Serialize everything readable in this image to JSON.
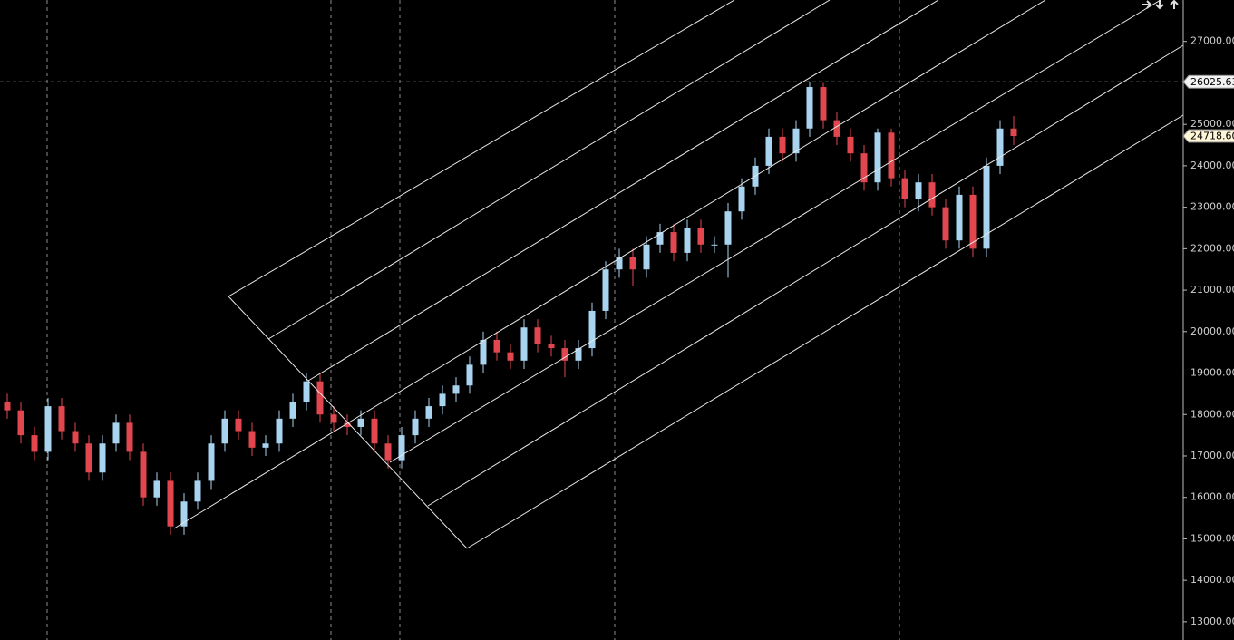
{
  "chart_data": {
    "type": "candlestick",
    "series": {
      "open": [
        18300,
        18100,
        17500,
        17100,
        18200,
        17600,
        17300,
        16600,
        17300,
        17800,
        17100,
        16000,
        16400,
        15300,
        15900,
        16400,
        17300,
        17900,
        17600,
        17200,
        17300,
        17900,
        18300,
        18800,
        18000,
        17800,
        17700,
        17900,
        17300,
        16900,
        17500,
        17900,
        18200,
        18500,
        18700,
        19200,
        19800,
        19500,
        19300,
        20100,
        19700,
        19600,
        19300,
        19600,
        20500,
        21500,
        21800,
        21500,
        22100,
        22400,
        21900,
        22500,
        22100,
        22100,
        22900,
        23500,
        24000,
        24700,
        24300,
        24900,
        25900,
        25100,
        24700,
        24300,
        23600,
        24800,
        23700,
        23200,
        23600,
        23000,
        22200,
        23300,
        22000,
        24000,
        24900
      ],
      "high": [
        18500,
        18300,
        17700,
        18400,
        18400,
        17800,
        17500,
        17500,
        18000,
        18000,
        17300,
        16600,
        16600,
        16100,
        16600,
        17500,
        18100,
        18100,
        17800,
        17500,
        18100,
        18500,
        19000,
        19000,
        18200,
        18000,
        18100,
        18100,
        17500,
        17700,
        18100,
        18400,
        18700,
        18900,
        19400,
        20000,
        20000,
        19700,
        20300,
        20300,
        19900,
        19800,
        19800,
        20700,
        21700,
        22000,
        22000,
        22300,
        22600,
        22600,
        22700,
        22700,
        22300,
        23100,
        23700,
        24200,
        24900,
        24900,
        25100,
        26025.63,
        26000,
        25300,
        24900,
        24500,
        24900,
        24900,
        23900,
        23800,
        23800,
        23200,
        23500,
        23500,
        24200,
        25100,
        25200
      ],
      "low": [
        17900,
        17300,
        16900,
        16900,
        17400,
        17100,
        16400,
        16400,
        17100,
        16900,
        15800,
        15800,
        15100,
        15100,
        15700,
        16200,
        17100,
        17400,
        17000,
        17000,
        17100,
        17700,
        18100,
        17800,
        17600,
        17500,
        17500,
        17100,
        16700,
        16700,
        17300,
        17700,
        18000,
        18300,
        18500,
        19000,
        19300,
        19100,
        19100,
        19500,
        19400,
        18900,
        19100,
        19400,
        20300,
        21300,
        21100,
        21300,
        21900,
        21700,
        21700,
        21900,
        21900,
        21300,
        22700,
        23300,
        23800,
        24100,
        24100,
        24700,
        24900,
        24500,
        24100,
        23400,
        23400,
        23500,
        23000,
        22900,
        22800,
        22000,
        22000,
        21800,
        21800,
        23800,
        24500
      ],
      "close": [
        18100,
        17500,
        17100,
        18200,
        17600,
        17300,
        16600,
        17300,
        17800,
        17100,
        16000,
        16400,
        15300,
        15900,
        16400,
        17300,
        17900,
        17600,
        17200,
        17300,
        17900,
        18300,
        18800,
        18000,
        17800,
        17700,
        17900,
        17300,
        16900,
        17500,
        17900,
        18200,
        18500,
        18700,
        19200,
        19800,
        19500,
        19300,
        20100,
        19700,
        19600,
        19300,
        19600,
        20500,
        21500,
        21800,
        21500,
        22100,
        22400,
        21900,
        22500,
        22100,
        22100,
        22900,
        23500,
        24000,
        24700,
        24300,
        24900,
        25900,
        25100,
        24700,
        24300,
        23600,
        24800,
        23700,
        23200,
        23600,
        23000,
        22200,
        23300,
        22000,
        24000,
        24900,
        24718.6
      ]
    },
    "up_color": "#a8d4f0",
    "down_color": "#e2474f",
    "ylim": [
      12560,
      28000
    ],
    "yticks": [
      {
        "value": 13000,
        "label": "13000.00"
      },
      {
        "value": 14000,
        "label": "14000.00"
      },
      {
        "value": 15000,
        "label": "15000.00"
      },
      {
        "value": 16000,
        "label": "16000.00"
      },
      {
        "value": 17000,
        "label": "17000.00"
      },
      {
        "value": 18000,
        "label": "18000.00"
      },
      {
        "value": 19000,
        "label": "19000.00"
      },
      {
        "value": 20000,
        "label": "20000.00"
      },
      {
        "value": 21000,
        "label": "21000.00"
      },
      {
        "value": 22000,
        "label": "22000.00"
      },
      {
        "value": 23000,
        "label": "23000.00"
      },
      {
        "value": 24000,
        "label": "24000.00"
      },
      {
        "value": 25000,
        "label": "25000.00"
      },
      {
        "value": 26000,
        "label": "26000.00"
      },
      {
        "value": 27000,
        "label": "27000.00"
      }
    ],
    "price_markers": [
      {
        "value": 26025.63,
        "label": "26025.63",
        "color": "#f2f2f2",
        "crosshair": true
      },
      {
        "value": 24718.6,
        "label": "24718.60",
        "color": "#fff6d8",
        "crosshair": false
      }
    ]
  }
}
